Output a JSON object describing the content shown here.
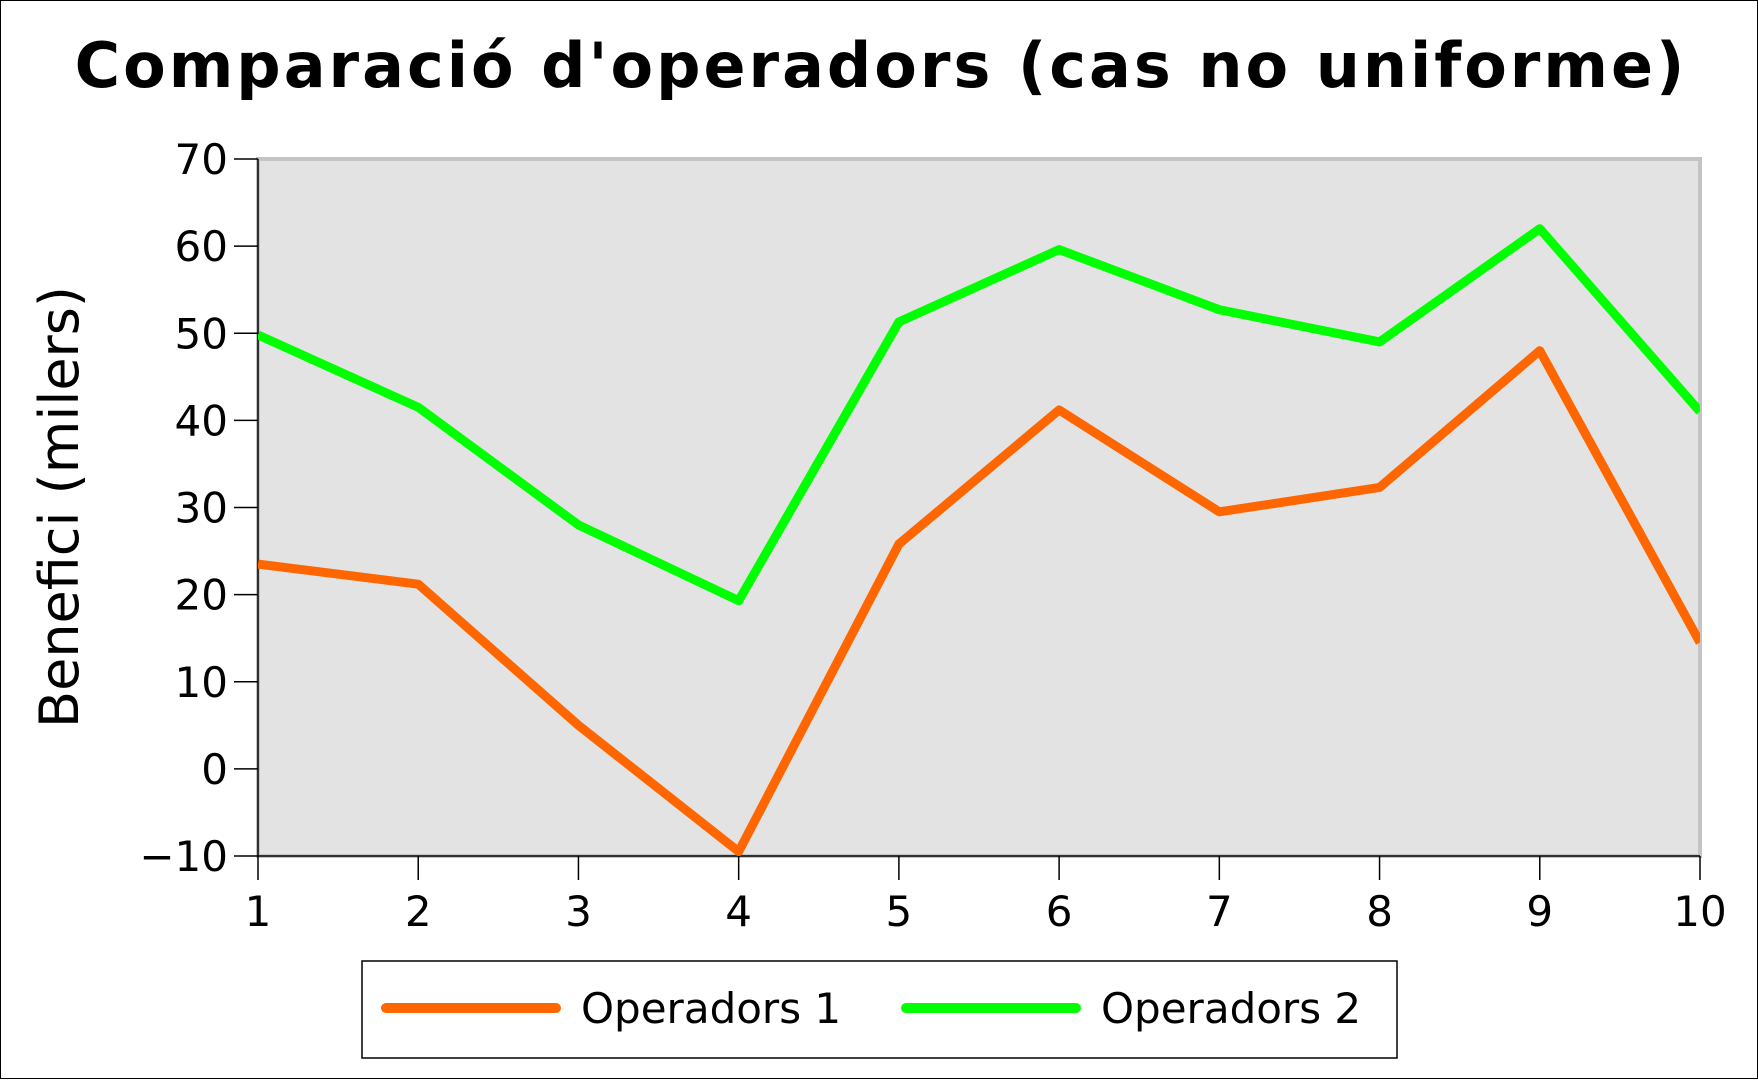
{
  "chart_data": {
    "type": "line",
    "title": "Comparació d'operadors (cas no uniforme)",
    "xlabel": "",
    "ylabel": "Benefici (milers)",
    "x": [
      1,
      2,
      3,
      4,
      5,
      6,
      7,
      8,
      9,
      10
    ],
    "xticks": [
      1,
      2,
      3,
      4,
      5,
      6,
      7,
      8,
      9,
      10
    ],
    "ylim": [
      -10,
      70
    ],
    "yticks": [
      -10,
      0,
      10,
      20,
      30,
      40,
      50,
      60,
      70
    ],
    "ytick_labels": [
      "−10",
      "0",
      "10",
      "20",
      "30",
      "40",
      "50",
      "60",
      "70"
    ],
    "grid": false,
    "plot_background": "#e3e3e3",
    "legend_placement": "bottom-center",
    "series": [
      {
        "name": "Operadors 1",
        "color": "#ff6600",
        "values": [
          23.5,
          21.2,
          5.0,
          -9.5,
          25.8,
          41.2,
          29.5,
          32.3,
          48.0,
          14.5
        ]
      },
      {
        "name": "Operadors 2",
        "color": "#00ff00",
        "values": [
          49.8,
          41.5,
          28.0,
          19.3,
          51.3,
          59.6,
          52.7,
          49.0,
          62.0,
          41.0
        ]
      }
    ]
  }
}
